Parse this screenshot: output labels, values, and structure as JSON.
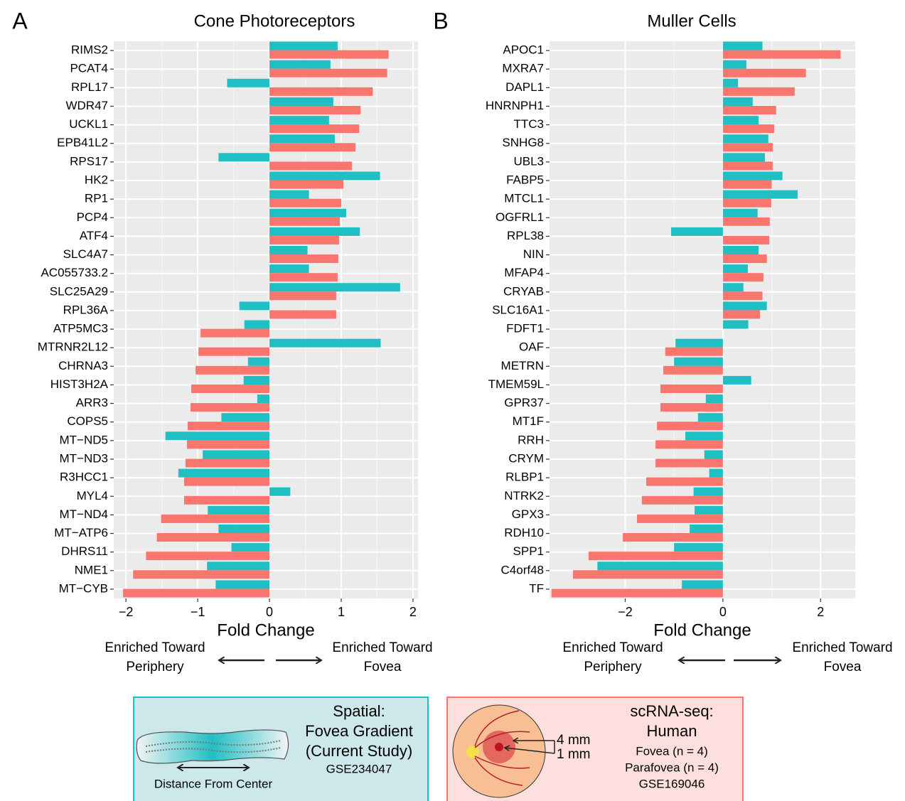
{
  "chart_data": [
    {
      "type": "bar",
      "orientation": "horizontal",
      "panel_label": "A",
      "title": "Cone Photoreceptors",
      "categories": [
        "RIMS2",
        "PCAT4",
        "RPL17",
        "WDR47",
        "UCKL1",
        "EPB41L2",
        "RPS17",
        "HK2",
        "RP1",
        "PCP4",
        "ATF4",
        "SLC4A7",
        "AC055733.2",
        "SLC25A29",
        "RPL36A",
        "ATP5MC3",
        "MTRNR2L12",
        "CHRNA3",
        "HIST3H2A",
        "ARR3",
        "COPS5",
        "MT−ND5",
        "MT−ND3",
        "R3HCC1",
        "MYL4",
        "MT−ND4",
        "MT−ATP6",
        "DHRS11",
        "NME1",
        "MT−CYB"
      ],
      "series": [
        {
          "color": "#1fbfc3",
          "values": [
            0.95,
            0.85,
            -0.59,
            0.89,
            0.83,
            0.91,
            -0.71,
            1.54,
            0.55,
            1.07,
            1.26,
            0.53,
            0.55,
            1.82,
            -0.42,
            -0.35,
            1.55,
            -0.3,
            -0.36,
            -0.17,
            -0.67,
            -1.45,
            -0.93,
            -1.27,
            0.29,
            -0.86,
            -0.71,
            -0.53,
            -0.87,
            -0.75
          ]
        },
        {
          "color": "#f8766d",
          "values": [
            1.66,
            1.64,
            1.44,
            1.27,
            1.25,
            1.2,
            1.15,
            1.03,
            1.0,
            0.98,
            0.97,
            0.96,
            0.95,
            0.93,
            0.93,
            -0.96,
            -0.99,
            -1.03,
            -1.09,
            -1.1,
            -1.14,
            -1.15,
            -1.17,
            -1.19,
            -1.19,
            -1.51,
            -1.57,
            -1.72,
            -1.9,
            -2.04
          ]
        }
      ],
      "xlim": [
        -2.17,
        2.07
      ],
      "xticks": [
        {
          "value": -2,
          "label": "−2"
        },
        {
          "value": -1,
          "label": "−1"
        },
        0,
        1,
        2
      ],
      "x_label": "Fold Change",
      "annotations": [
        [
          "Enriched Toward",
          "Periphery"
        ],
        [
          "Enriched Toward",
          "Fovea"
        ]
      ],
      "grid": true
    },
    {
      "type": "bar",
      "orientation": "horizontal",
      "panel_label": "B",
      "title": "Muller Cells",
      "categories": [
        "APOC1",
        "MXRA7",
        "DAPL1",
        "HNRNPH1",
        "TTC3",
        "SNHG8",
        "UBL3",
        "FABP5",
        "MTCL1",
        "OGFRL1",
        "RPL38",
        "NIN",
        "MFAP4",
        "CRYAB",
        "SLC16A1",
        "FDFT1",
        "OAF",
        "METRN",
        "TMEM59L",
        "GPR37",
        "MT1F",
        "RRH",
        "CRYM",
        "RLBP1",
        "NTRK2",
        "GPX3",
        "RDH10",
        "SPP1",
        "C4orf48",
        "TF"
      ],
      "series": [
        {
          "color": "#1fbfc3",
          "values": [
            0.81,
            0.48,
            0.31,
            0.61,
            0.73,
            0.93,
            0.86,
            1.22,
            1.53,
            0.71,
            -1.06,
            0.73,
            0.51,
            0.42,
            0.9,
            0.52,
            -0.97,
            -1.0,
            0.58,
            -0.35,
            -0.51,
            -0.77,
            -0.38,
            -0.28,
            -0.6,
            -0.58,
            -0.68,
            -1.0,
            -2.57,
            -0.84
          ]
        },
        {
          "color": "#f8766d",
          "values": [
            2.41,
            1.7,
            1.47,
            1.09,
            1.05,
            1.02,
            1.02,
            1.0,
            0.99,
            0.96,
            0.95,
            0.9,
            0.83,
            0.81,
            0.76,
            null,
            -1.18,
            -1.22,
            -1.28,
            -1.28,
            -1.35,
            -1.38,
            -1.38,
            -1.57,
            -1.66,
            -1.76,
            -2.05,
            -2.75,
            -3.07,
            -3.51
          ]
        }
      ],
      "xlim": [
        -3.55,
        2.71
      ],
      "xticks": [
        {
          "value": -2,
          "label": "−2"
        },
        0,
        2
      ],
      "x_label": "Fold Change",
      "annotations": [
        [
          "Enriched Toward",
          "Periphery"
        ],
        [
          "Enriched Toward",
          "Fovea"
        ]
      ],
      "grid": true
    }
  ],
  "legend": [
    {
      "title_lines": [
        "Spatial:",
        "Fovea Gradient",
        "(Current Study)"
      ],
      "details": [
        "GSE234047"
      ],
      "caption": "Distance From Center"
    },
    {
      "title_lines": [
        "scRNA-seq:",
        "Human"
      ],
      "details": [
        "Fovea (n = 4)",
        "Parafovea (n = 4)",
        "GSE169046"
      ],
      "labels": [
        "4 mm",
        "1 mm"
      ]
    }
  ]
}
